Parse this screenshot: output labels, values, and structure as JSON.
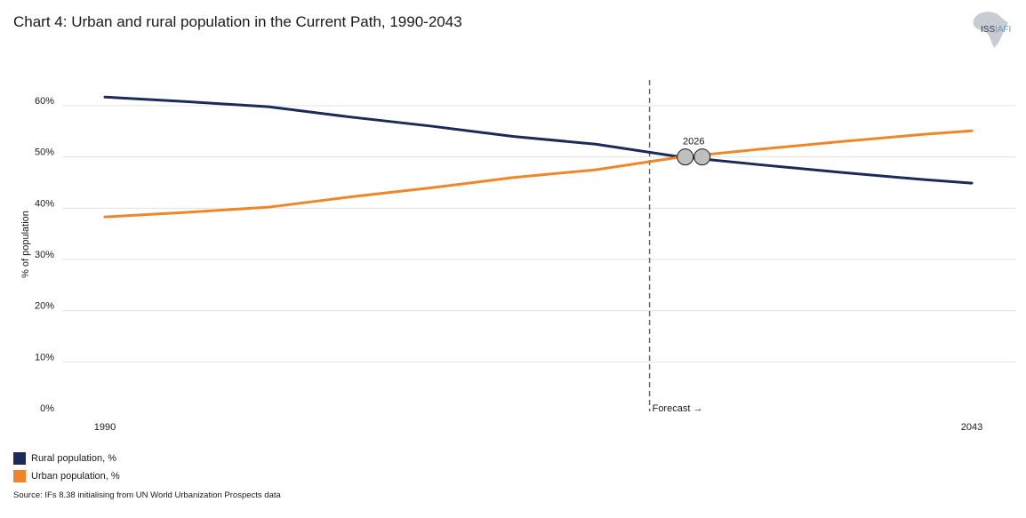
{
  "page": {
    "title": "Chart 4: Urban and rural population in the Current Path, 1990-2043",
    "source": "Source: IFs 8.38 initialising from UN World Urbanization Prospects data",
    "logo": {
      "name": "ISS",
      "suffix": "AFI"
    }
  },
  "colors": {
    "rural": "#1b2a57",
    "urban": "#f0862a",
    "grid": "#e3e3e3",
    "marker_fill": "#bfbfbf",
    "forecast_line": "#666666"
  },
  "chart_data": {
    "type": "line",
    "title": "Chart 4: Urban and rural population in the Current Path, 1990-2043",
    "xlabel": "",
    "ylabel": "% of population",
    "xlim": [
      1990,
      2043
    ],
    "ylim": [
      0,
      60
    ],
    "yticks": [
      0,
      10,
      20,
      30,
      40,
      50,
      60
    ],
    "ytick_labels": [
      "0%",
      "10%",
      "20%",
      "30%",
      "40%",
      "50%",
      "60%"
    ],
    "xtick_labels": [
      "1990",
      "2043"
    ],
    "forecast_start": 2023.3,
    "forecast_label": "Forecast →",
    "annotation": {
      "year": 2026,
      "label": "2026",
      "value": 50
    },
    "series": [
      {
        "name": "Rural population, %",
        "color": "#1b2a57",
        "x": [
          1990,
          1995,
          2000,
          2005,
          2010,
          2015,
          2020,
          2025,
          2030,
          2035,
          2040,
          2043
        ],
        "values": [
          61.7,
          60.8,
          59.8,
          57.8,
          56.0,
          54.0,
          52.5,
          50.1,
          48.5,
          47.0,
          45.6,
          44.9
        ]
      },
      {
        "name": "Urban population, %",
        "color": "#f0862a",
        "x": [
          1990,
          1995,
          2000,
          2005,
          2010,
          2015,
          2020,
          2025,
          2030,
          2035,
          2040,
          2043
        ],
        "values": [
          38.3,
          39.2,
          40.2,
          42.2,
          44.0,
          46.0,
          47.5,
          49.9,
          51.5,
          53.0,
          54.4,
          55.1
        ]
      }
    ]
  }
}
